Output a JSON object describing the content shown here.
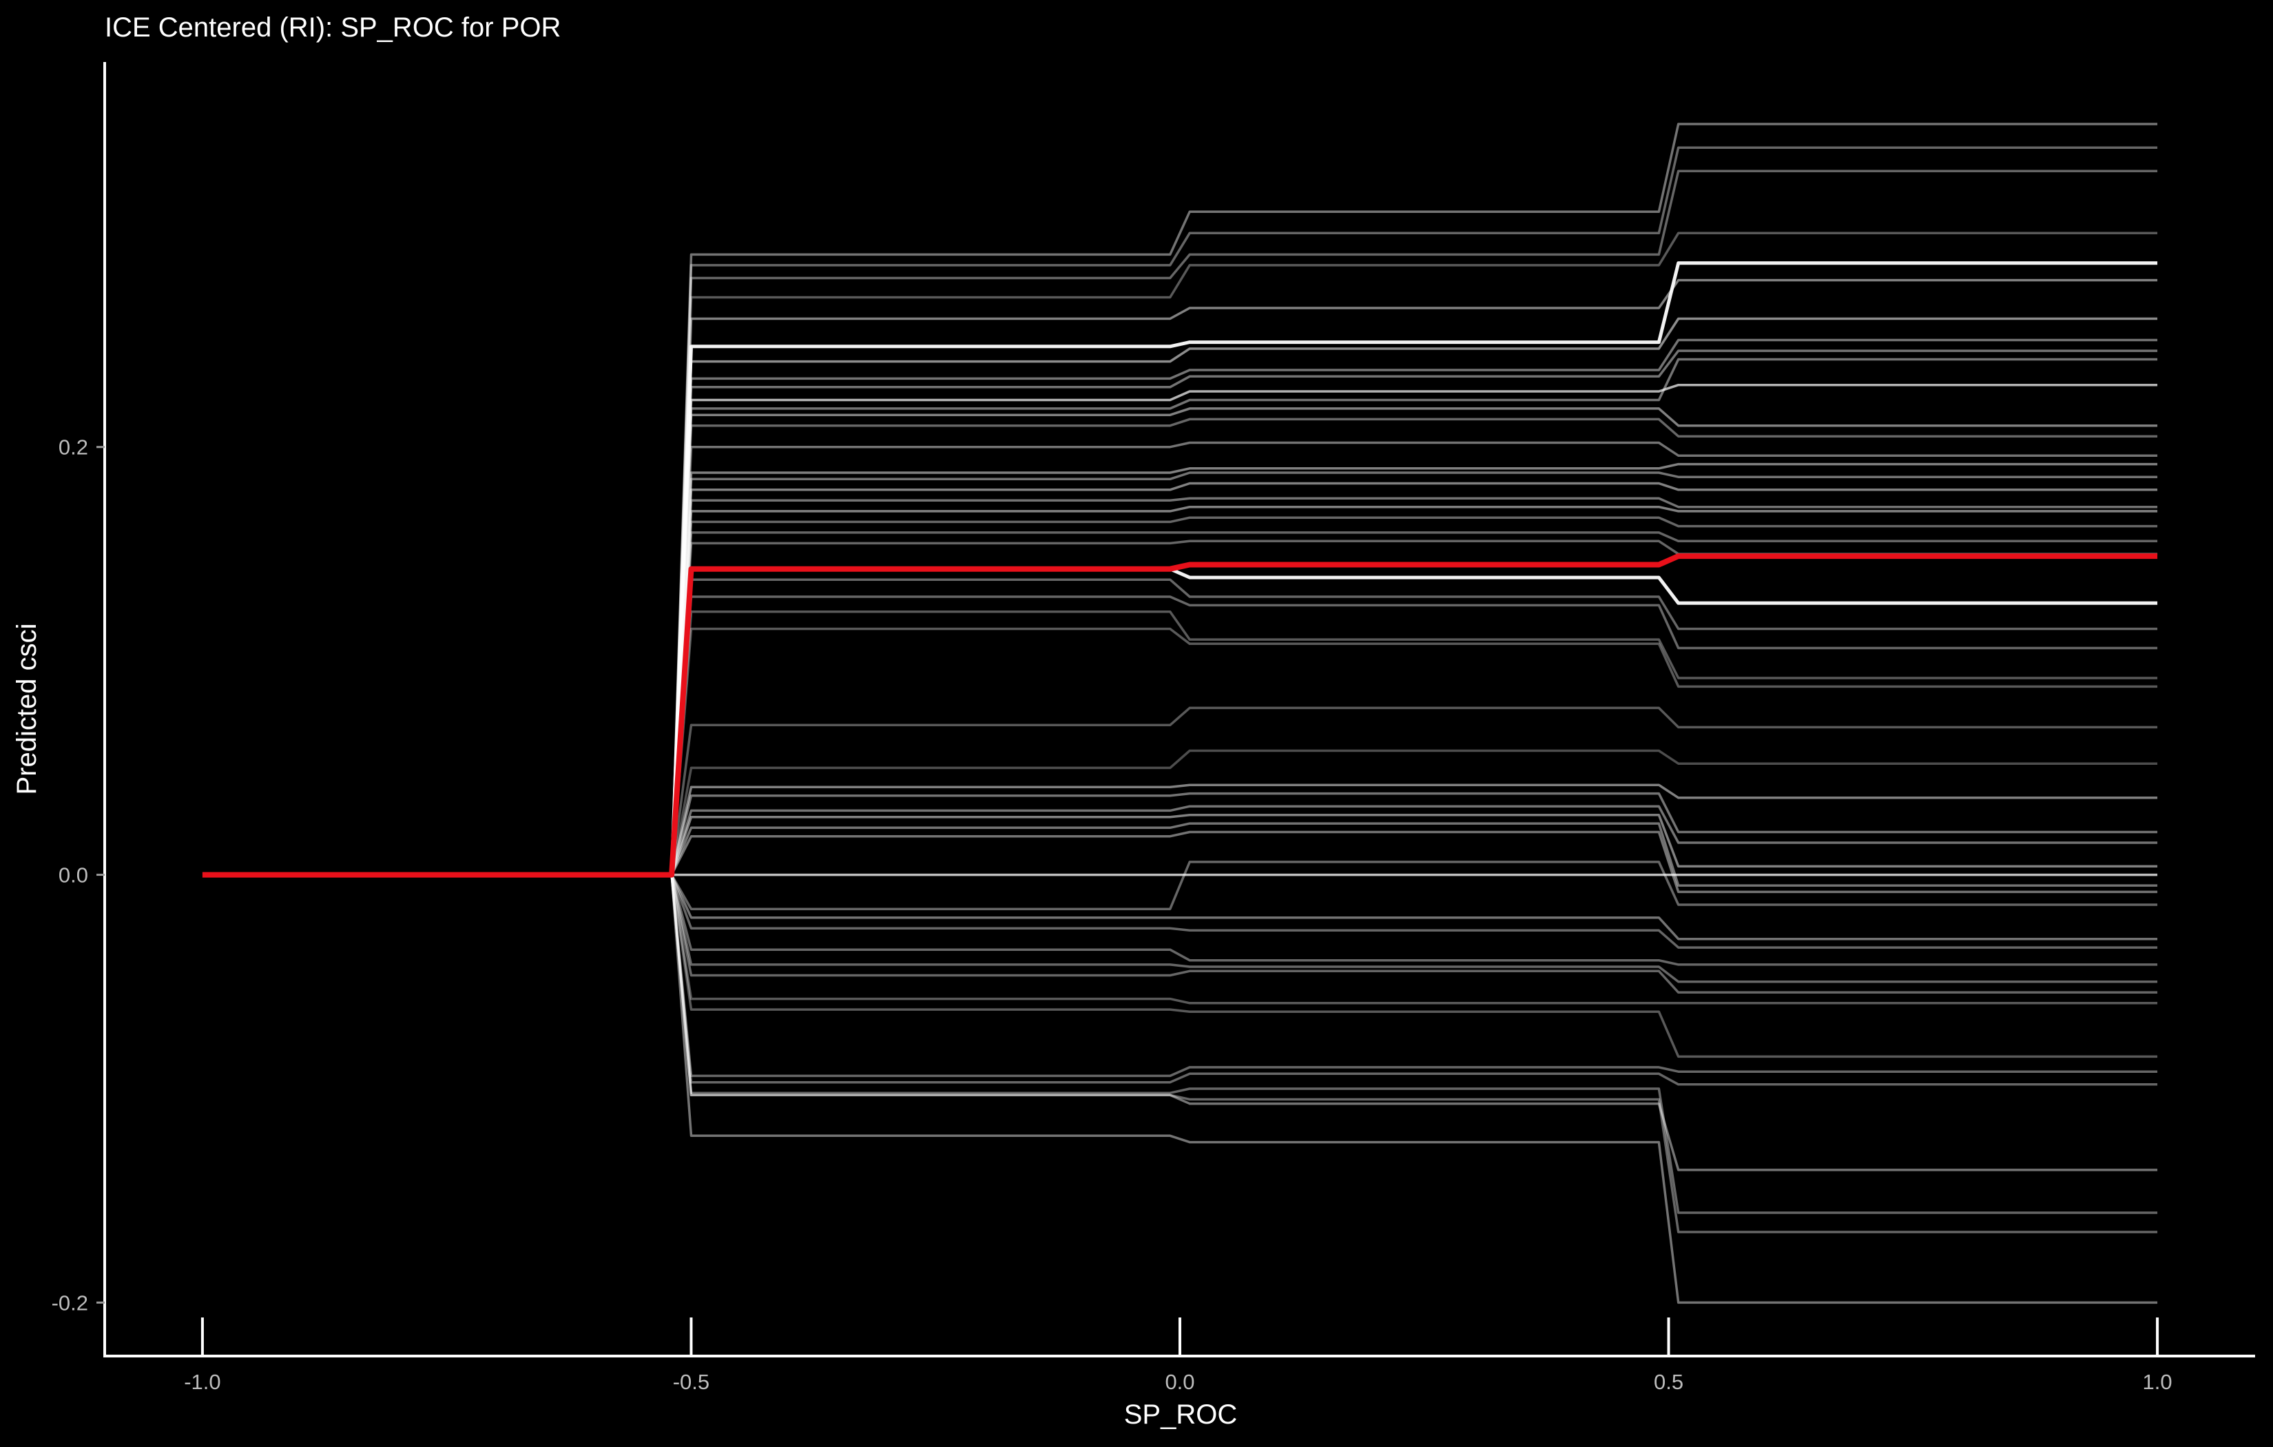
{
  "chart_data": {
    "type": "line",
    "title": "ICE Centered (RI): SP_ROC for POR",
    "xlabel": "SP_ROC",
    "ylabel": "Predicted csci",
    "xlim": [
      -1.1,
      1.1
    ],
    "ylim": [
      -0.225,
      0.38
    ],
    "x_ticks": [
      -1.0,
      -0.5,
      0.0,
      0.5,
      1.0
    ],
    "x_tick_labels": [
      "-1.0",
      "-0.5",
      "0.0",
      "0.5",
      "1.0"
    ],
    "y_ticks": [
      -0.2,
      0.0,
      0.2
    ],
    "y_tick_labels": [
      "-0.2",
      "0.0",
      "0.2"
    ],
    "grid": false,
    "legend": "none",
    "x": [
      -0.52,
      -0.5,
      -0.01,
      0.01,
      0.49,
      0.51,
      1.0
    ],
    "series": [
      {
        "role": "ice",
        "color": "#ffffff",
        "opacity": 0.95,
        "values": [
          0,
          0.247,
          0.247,
          0.249,
          0.249,
          0.286,
          0.286
        ]
      },
      {
        "role": "ice",
        "color": "#ffffff",
        "opacity": 0.95,
        "values": [
          0,
          0.143,
          0.143,
          0.139,
          0.139,
          0.127,
          0.127
        ]
      },
      {
        "role": "ice",
        "color": "#ffffff",
        "opacity": 0.75,
        "values": [
          0,
          0.0,
          0.0,
          0.0,
          0.0,
          0.0,
          0.0
        ]
      },
      {
        "role": "ice",
        "color": "#ffffff",
        "opacity": 0.45,
        "values": [
          0,
          0.29,
          0.29,
          0.31,
          0.31,
          0.351,
          0.351
        ]
      },
      {
        "role": "ice",
        "color": "#ffffff",
        "opacity": 0.4,
        "values": [
          0,
          0.285,
          0.285,
          0.3,
          0.3,
          0.34,
          0.34
        ]
      },
      {
        "role": "ice",
        "color": "#ffffff",
        "opacity": 0.4,
        "values": [
          0,
          0.279,
          0.279,
          0.29,
          0.29,
          0.329,
          0.329
        ]
      },
      {
        "role": "ice",
        "color": "#ffffff",
        "opacity": 0.35,
        "values": [
          0,
          0.27,
          0.27,
          0.285,
          0.285,
          0.3,
          0.3
        ]
      },
      {
        "role": "ice",
        "color": "#ffffff",
        "opacity": 0.5,
        "values": [
          0,
          0.26,
          0.26,
          0.265,
          0.265,
          0.278,
          0.278
        ]
      },
      {
        "role": "ice",
        "color": "#ffffff",
        "opacity": 0.55,
        "values": [
          0,
          0.24,
          0.24,
          0.246,
          0.246,
          0.26,
          0.26
        ]
      },
      {
        "role": "ice",
        "color": "#ffffff",
        "opacity": 0.45,
        "values": [
          0,
          0.232,
          0.232,
          0.236,
          0.236,
          0.25,
          0.25
        ]
      },
      {
        "role": "ice",
        "color": "#ffffff",
        "opacity": 0.45,
        "values": [
          0,
          0.228,
          0.228,
          0.233,
          0.233,
          0.245,
          0.245
        ]
      },
      {
        "role": "ice",
        "color": "#ffffff",
        "opacity": 0.7,
        "values": [
          0,
          0.222,
          0.222,
          0.226,
          0.226,
          0.229,
          0.229
        ]
      },
      {
        "role": "ice",
        "color": "#ffffff",
        "opacity": 0.45,
        "values": [
          0,
          0.218,
          0.218,
          0.222,
          0.222,
          0.241,
          0.241
        ]
      },
      {
        "role": "ice",
        "color": "#ffffff",
        "opacity": 0.5,
        "values": [
          0,
          0.215,
          0.215,
          0.218,
          0.218,
          0.21,
          0.21
        ]
      },
      {
        "role": "ice",
        "color": "#ffffff",
        "opacity": 0.4,
        "values": [
          0,
          0.21,
          0.21,
          0.213,
          0.213,
          0.205,
          0.205
        ]
      },
      {
        "role": "ice",
        "color": "#ffffff",
        "opacity": 0.45,
        "values": [
          0,
          0.2,
          0.2,
          0.202,
          0.202,
          0.196,
          0.196
        ]
      },
      {
        "role": "ice",
        "color": "#ffffff",
        "opacity": 0.5,
        "values": [
          0,
          0.188,
          0.188,
          0.19,
          0.19,
          0.192,
          0.192
        ]
      },
      {
        "role": "ice",
        "color": "#ffffff",
        "opacity": 0.45,
        "values": [
          0,
          0.185,
          0.185,
          0.188,
          0.188,
          0.186,
          0.186
        ]
      },
      {
        "role": "ice",
        "color": "#ffffff",
        "opacity": 0.5,
        "values": [
          0,
          0.18,
          0.18,
          0.183,
          0.183,
          0.18,
          0.18
        ]
      },
      {
        "role": "ice",
        "color": "#ffffff",
        "opacity": 0.45,
        "values": [
          0,
          0.175,
          0.175,
          0.176,
          0.176,
          0.172,
          0.172
        ]
      },
      {
        "role": "ice",
        "color": "#ffffff",
        "opacity": 0.5,
        "values": [
          0,
          0.17,
          0.17,
          0.172,
          0.172,
          0.17,
          0.17
        ]
      },
      {
        "role": "ice",
        "color": "#ffffff",
        "opacity": 0.4,
        "values": [
          0,
          0.165,
          0.165,
          0.167,
          0.167,
          0.163,
          0.163
        ]
      },
      {
        "role": "ice",
        "color": "#ffffff",
        "opacity": 0.4,
        "values": [
          0,
          0.16,
          0.16,
          0.16,
          0.16,
          0.156,
          0.156
        ]
      },
      {
        "role": "ice",
        "color": "#ffffff",
        "opacity": 0.4,
        "values": [
          0,
          0.155,
          0.155,
          0.156,
          0.156,
          0.15,
          0.15
        ]
      },
      {
        "role": "ice",
        "color": "#ffffff",
        "opacity": 0.4,
        "values": [
          0,
          0.138,
          0.138,
          0.13,
          0.13,
          0.115,
          0.115
        ]
      },
      {
        "role": "ice",
        "color": "#ffffff",
        "opacity": 0.4,
        "values": [
          0,
          0.13,
          0.13,
          0.126,
          0.126,
          0.106,
          0.106
        ]
      },
      {
        "role": "ice",
        "color": "#ffffff",
        "opacity": 0.35,
        "values": [
          0,
          0.123,
          0.123,
          0.11,
          0.11,
          0.092,
          0.092
        ]
      },
      {
        "role": "ice",
        "color": "#ffffff",
        "opacity": 0.35,
        "values": [
          0,
          0.115,
          0.115,
          0.108,
          0.108,
          0.088,
          0.088
        ]
      },
      {
        "role": "ice",
        "color": "#ffffff",
        "opacity": 0.35,
        "values": [
          0,
          0.07,
          0.07,
          0.078,
          0.078,
          0.069,
          0.069
        ]
      },
      {
        "role": "ice",
        "color": "#ffffff",
        "opacity": 0.3,
        "values": [
          0,
          0.05,
          0.05,
          0.058,
          0.058,
          0.052,
          0.052
        ]
      },
      {
        "role": "ice",
        "color": "#ffffff",
        "opacity": 0.5,
        "values": [
          0,
          0.041,
          0.041,
          0.042,
          0.042,
          0.036,
          0.036
        ]
      },
      {
        "role": "ice",
        "color": "#ffffff",
        "opacity": 0.45,
        "values": [
          0,
          0.037,
          0.037,
          0.038,
          0.038,
          0.02,
          0.02
        ]
      },
      {
        "role": "ice",
        "color": "#ffffff",
        "opacity": 0.45,
        "values": [
          0,
          0.03,
          0.03,
          0.032,
          0.032,
          0.015,
          0.015
        ]
      },
      {
        "role": "ice",
        "color": "#ffffff",
        "opacity": 0.5,
        "values": [
          0,
          0.027,
          0.027,
          0.028,
          0.028,
          0.004,
          0.004
        ]
      },
      {
        "role": "ice",
        "color": "#ffffff",
        "opacity": 0.45,
        "values": [
          0,
          0.022,
          0.022,
          0.024,
          0.024,
          -0.005,
          -0.005
        ]
      },
      {
        "role": "ice",
        "color": "#ffffff",
        "opacity": 0.45,
        "values": [
          0,
          0.018,
          0.018,
          0.02,
          0.02,
          -0.008,
          -0.008
        ]
      },
      {
        "role": "ice",
        "color": "#ffffff",
        "opacity": 0.4,
        "values": [
          0,
          -0.016,
          -0.016,
          0.006,
          0.006,
          -0.014,
          -0.014
        ]
      },
      {
        "role": "ice",
        "color": "#ffffff",
        "opacity": 0.45,
        "values": [
          0,
          -0.02,
          -0.02,
          -0.02,
          -0.02,
          -0.03,
          -0.03
        ]
      },
      {
        "role": "ice",
        "color": "#ffffff",
        "opacity": 0.4,
        "values": [
          0,
          -0.025,
          -0.025,
          -0.026,
          -0.026,
          -0.034,
          -0.034
        ]
      },
      {
        "role": "ice",
        "color": "#ffffff",
        "opacity": 0.4,
        "values": [
          0,
          -0.035,
          -0.035,
          -0.04,
          -0.04,
          -0.042,
          -0.042
        ]
      },
      {
        "role": "ice",
        "color": "#ffffff",
        "opacity": 0.4,
        "values": [
          0,
          -0.042,
          -0.042,
          -0.043,
          -0.043,
          -0.05,
          -0.05
        ]
      },
      {
        "role": "ice",
        "color": "#ffffff",
        "opacity": 0.4,
        "values": [
          0,
          -0.047,
          -0.047,
          -0.045,
          -0.045,
          -0.055,
          -0.055
        ]
      },
      {
        "role": "ice",
        "color": "#ffffff",
        "opacity": 0.35,
        "values": [
          0,
          -0.058,
          -0.058,
          -0.06,
          -0.06,
          -0.06,
          -0.06
        ]
      },
      {
        "role": "ice",
        "color": "#ffffff",
        "opacity": 0.35,
        "values": [
          0,
          -0.063,
          -0.063,
          -0.064,
          -0.064,
          -0.085,
          -0.085
        ]
      },
      {
        "role": "ice",
        "color": "#ffffff",
        "opacity": 0.4,
        "values": [
          0,
          -0.094,
          -0.094,
          -0.09,
          -0.09,
          -0.092,
          -0.092
        ]
      },
      {
        "role": "ice",
        "color": "#ffffff",
        "opacity": 0.4,
        "values": [
          0,
          -0.097,
          -0.097,
          -0.093,
          -0.093,
          -0.098,
          -0.098
        ]
      },
      {
        "role": "ice",
        "color": "#ffffff",
        "opacity": 0.45,
        "values": [
          0,
          -0.103,
          -0.103,
          -0.107,
          -0.107,
          -0.138,
          -0.138
        ]
      },
      {
        "role": "ice",
        "color": "#ffffff",
        "opacity": 0.4,
        "values": [
          0,
          -0.102,
          -0.102,
          -0.1,
          -0.1,
          -0.158,
          -0.158
        ]
      },
      {
        "role": "ice",
        "color": "#ffffff",
        "opacity": 0.4,
        "values": [
          0,
          -0.103,
          -0.103,
          -0.105,
          -0.105,
          -0.167,
          -0.167
        ]
      },
      {
        "role": "ice",
        "color": "#ffffff",
        "opacity": 0.45,
        "values": [
          0,
          -0.122,
          -0.122,
          -0.125,
          -0.125,
          -0.2,
          -0.2
        ]
      },
      {
        "role": "average",
        "color": "#e8101a",
        "opacity": 1.0,
        "values": [
          0,
          0.143,
          0.143,
          0.145,
          0.145,
          0.149,
          0.149
        ]
      }
    ]
  }
}
